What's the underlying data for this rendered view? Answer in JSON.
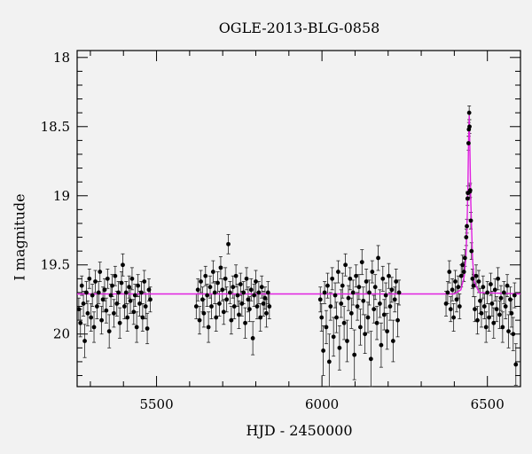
{
  "chart_data": {
    "type": "scatter",
    "title": "OGLE-2013-BLG-0858",
    "xlabel": "HJD - 2450000",
    "ylabel": "I magnitude",
    "xlim": [
      5260,
      6600
    ],
    "ylim": [
      20.38,
      17.95
    ],
    "y_inverted": true,
    "x_ticks": [
      5500,
      6000,
      6500
    ],
    "x_tick_labels": [
      "5500",
      "6000",
      "6500"
    ],
    "y_ticks": [
      18,
      18.5,
      19,
      19.5,
      20
    ],
    "y_tick_labels": [
      "18",
      "18.5",
      "19",
      "19.5",
      "20"
    ],
    "baseline_mag": 19.71,
    "model_color": "#e020e0",
    "point_color": "#000000",
    "grid": false,
    "model_curve": {
      "x": [
        5260,
        6400,
        6420,
        6430,
        6435,
        6438,
        6441,
        6443,
        6445,
        6447,
        6450,
        6455,
        6460,
        6475,
        6600
      ],
      "y": [
        19.71,
        19.71,
        19.68,
        19.58,
        19.45,
        19.25,
        18.95,
        18.62,
        18.42,
        18.65,
        19.05,
        19.45,
        19.62,
        19.7,
        19.71
      ]
    },
    "series": [
      {
        "name": "",
        "points": [
          [
            5265,
            19.82,
            0.08
          ],
          [
            5270,
            19.92,
            0.1
          ],
          [
            5274,
            19.65,
            0.07
          ],
          [
            5279,
            19.78,
            0.09
          ],
          [
            5283,
            20.05,
            0.12
          ],
          [
            5288,
            19.7,
            0.08
          ],
          [
            5292,
            19.85,
            0.09
          ],
          [
            5297,
            19.6,
            0.07
          ],
          [
            5302,
            19.88,
            0.1
          ],
          [
            5306,
            19.72,
            0.08
          ],
          [
            5311,
            19.95,
            0.11
          ],
          [
            5315,
            19.62,
            0.08
          ],
          [
            5320,
            19.8,
            0.09
          ],
          [
            5325,
            19.7,
            0.08
          ],
          [
            5329,
            19.55,
            0.07
          ],
          [
            5334,
            19.9,
            0.1
          ],
          [
            5338,
            19.75,
            0.09
          ],
          [
            5343,
            19.68,
            0.08
          ],
          [
            5348,
            19.83,
            0.09
          ],
          [
            5352,
            19.6,
            0.07
          ],
          [
            5357,
            19.98,
            0.12
          ],
          [
            5362,
            19.72,
            0.08
          ],
          [
            5366,
            19.65,
            0.08
          ],
          [
            5371,
            19.85,
            0.1
          ],
          [
            5375,
            19.58,
            0.07
          ],
          [
            5380,
            19.78,
            0.09
          ],
          [
            5385,
            19.7,
            0.08
          ],
          [
            5389,
            19.92,
            0.11
          ],
          [
            5394,
            19.63,
            0.08
          ],
          [
            5398,
            19.5,
            0.08
          ],
          [
            5403,
            19.8,
            0.09
          ],
          [
            5408,
            19.7,
            0.08
          ],
          [
            5412,
            19.88,
            0.1
          ],
          [
            5417,
            19.66,
            0.08
          ],
          [
            5421,
            19.76,
            0.09
          ],
          [
            5426,
            19.6,
            0.08
          ],
          [
            5431,
            19.84,
            0.09
          ],
          [
            5435,
            19.72,
            0.08
          ],
          [
            5440,
            19.95,
            0.11
          ],
          [
            5444,
            19.65,
            0.08
          ],
          [
            5449,
            19.78,
            0.09
          ],
          [
            5454,
            19.7,
            0.08
          ],
          [
            5458,
            19.88,
            0.1
          ],
          [
            5463,
            19.62,
            0.08
          ],
          [
            5467,
            19.8,
            0.09
          ],
          [
            5472,
            19.96,
            0.11
          ],
          [
            5477,
            19.68,
            0.08
          ],
          [
            5481,
            19.75,
            0.09
          ],
          [
            5620,
            19.8,
            0.09
          ],
          [
            5625,
            19.68,
            0.08
          ],
          [
            5630,
            19.9,
            0.1
          ],
          [
            5634,
            19.62,
            0.08
          ],
          [
            5639,
            19.75,
            0.09
          ],
          [
            5643,
            19.85,
            0.1
          ],
          [
            5648,
            19.58,
            0.07
          ],
          [
            5653,
            19.72,
            0.08
          ],
          [
            5657,
            19.95,
            0.11
          ],
          [
            5662,
            19.66,
            0.08
          ],
          [
            5666,
            19.8,
            0.09
          ],
          [
            5671,
            19.55,
            0.08
          ],
          [
            5676,
            19.7,
            0.08
          ],
          [
            5680,
            19.88,
            0.1
          ],
          [
            5685,
            19.63,
            0.08
          ],
          [
            5690,
            19.78,
            0.09
          ],
          [
            5694,
            19.52,
            0.08
          ],
          [
            5699,
            19.68,
            0.08
          ],
          [
            5703,
            19.84,
            0.09
          ],
          [
            5708,
            19.6,
            0.08
          ],
          [
            5712,
            19.75,
            0.09
          ],
          [
            5717,
            19.35,
            0.07
          ],
          [
            5722,
            19.7,
            0.08
          ],
          [
            5726,
            19.9,
            0.1
          ],
          [
            5731,
            19.66,
            0.08
          ],
          [
            5735,
            19.8,
            0.09
          ],
          [
            5740,
            19.58,
            0.08
          ],
          [
            5745,
            19.72,
            0.08
          ],
          [
            5749,
            19.86,
            0.1
          ],
          [
            5754,
            19.64,
            0.08
          ],
          [
            5758,
            19.78,
            0.09
          ],
          [
            5763,
            19.7,
            0.08
          ],
          [
            5768,
            19.92,
            0.11
          ],
          [
            5772,
            19.6,
            0.08
          ],
          [
            5777,
            19.75,
            0.09
          ],
          [
            5781,
            19.82,
            0.09
          ],
          [
            5786,
            19.68,
            0.08
          ],
          [
            5791,
            20.03,
            0.12
          ],
          [
            5795,
            19.72,
            0.08
          ],
          [
            5800,
            19.62,
            0.08
          ],
          [
            5804,
            19.8,
            0.09
          ],
          [
            5809,
            19.7,
            0.08
          ],
          [
            5814,
            19.88,
            0.1
          ],
          [
            5818,
            19.66,
            0.08
          ],
          [
            5823,
            19.78,
            0.09
          ],
          [
            5828,
            19.74,
            0.08
          ],
          [
            5832,
            19.85,
            0.1
          ],
          [
            5837,
            19.7,
            0.08
          ],
          [
            5841,
            19.8,
            0.09
          ],
          [
            5995,
            19.75,
            0.09
          ],
          [
            5999,
            19.88,
            0.1
          ],
          [
            6004,
            20.12,
            0.18
          ],
          [
            6008,
            19.7,
            0.08
          ],
          [
            6013,
            19.95,
            0.12
          ],
          [
            6017,
            19.65,
            0.09
          ],
          [
            6022,
            20.2,
            0.2
          ],
          [
            6026,
            19.8,
            0.1
          ],
          [
            6031,
            19.6,
            0.08
          ],
          [
            6035,
            20.02,
            0.14
          ],
          [
            6040,
            19.72,
            0.09
          ],
          [
            6044,
            19.88,
            0.11
          ],
          [
            6049,
            19.55,
            0.08
          ],
          [
            6053,
            20.1,
            0.16
          ],
          [
            6058,
            19.78,
            0.1
          ],
          [
            6062,
            19.65,
            0.09
          ],
          [
            6067,
            19.92,
            0.12
          ],
          [
            6071,
            19.5,
            0.08
          ],
          [
            6076,
            20.05,
            0.15
          ],
          [
            6080,
            19.74,
            0.09
          ],
          [
            6085,
            19.6,
            0.08
          ],
          [
            6089,
            19.85,
            0.11
          ],
          [
            6094,
            19.7,
            0.09
          ],
          [
            6098,
            20.15,
            0.18
          ],
          [
            6103,
            19.58,
            0.08
          ],
          [
            6107,
            19.8,
            0.1
          ],
          [
            6112,
            19.66,
            0.09
          ],
          [
            6116,
            19.95,
            0.13
          ],
          [
            6121,
            19.48,
            0.09
          ],
          [
            6125,
            19.76,
            0.1
          ],
          [
            6130,
            20.0,
            0.14
          ],
          [
            6134,
            19.62,
            0.09
          ],
          [
            6139,
            19.88,
            0.11
          ],
          [
            6143,
            19.7,
            0.09
          ],
          [
            6148,
            20.18,
            0.2
          ],
          [
            6152,
            19.55,
            0.08
          ],
          [
            6157,
            19.82,
            0.1
          ],
          [
            6161,
            19.66,
            0.09
          ],
          [
            6166,
            19.92,
            0.12
          ],
          [
            6170,
            19.45,
            0.09
          ],
          [
            6175,
            19.78,
            0.1
          ],
          [
            6179,
            20.08,
            0.16
          ],
          [
            6184,
            19.6,
            0.09
          ],
          [
            6188,
            19.86,
            0.11
          ],
          [
            6193,
            19.72,
            0.09
          ],
          [
            6197,
            19.98,
            0.13
          ],
          [
            6202,
            19.58,
            0.09
          ],
          [
            6206,
            19.8,
            0.1
          ],
          [
            6211,
            19.68,
            0.09
          ],
          [
            6215,
            20.05,
            0.15
          ],
          [
            6220,
            19.75,
            0.09
          ],
          [
            6224,
            19.62,
            0.09
          ],
          [
            6229,
            19.9,
            0.12
          ],
          [
            6233,
            19.7,
            0.09
          ],
          [
            6375,
            19.78,
            0.09
          ],
          [
            6380,
            19.7,
            0.08
          ],
          [
            6385,
            19.55,
            0.08
          ],
          [
            6389,
            19.82,
            0.09
          ],
          [
            6394,
            19.68,
            0.08
          ],
          [
            6398,
            19.88,
            0.1
          ],
          [
            6403,
            19.62,
            0.08
          ],
          [
            6407,
            19.75,
            0.09
          ],
          [
            6412,
            19.66,
            0.08
          ],
          [
            6416,
            19.8,
            0.09
          ],
          [
            6421,
            19.58,
            0.08
          ],
          [
            6425,
            19.5,
            0.07
          ],
          [
            6429,
            19.55,
            0.07
          ],
          [
            6432,
            19.45,
            0.06
          ],
          [
            6436,
            19.3,
            0.06
          ],
          [
            6438,
            19.22,
            0.05
          ],
          [
            6440,
            19.02,
            0.05
          ],
          [
            6441,
            18.98,
            0.05
          ],
          [
            6443,
            18.62,
            0.05
          ],
          [
            6444,
            18.52,
            0.05
          ],
          [
            6445,
            18.4,
            0.05
          ],
          [
            6446,
            18.5,
            0.05
          ],
          [
            6447,
            18.97,
            0.05
          ],
          [
            6448,
            18.96,
            0.05
          ],
          [
            6450,
            19.18,
            0.06
          ],
          [
            6452,
            19.4,
            0.06
          ],
          [
            6455,
            19.6,
            0.07
          ],
          [
            6458,
            19.65,
            0.08
          ],
          [
            6462,
            19.82,
            0.09
          ],
          [
            6466,
            19.58,
            0.08
          ],
          [
            6470,
            19.9,
            0.1
          ],
          [
            6474,
            19.62,
            0.08
          ],
          [
            6478,
            19.76,
            0.09
          ],
          [
            6482,
            19.85,
            0.1
          ],
          [
            6487,
            19.66,
            0.08
          ],
          [
            6491,
            19.8,
            0.09
          ],
          [
            6496,
            19.95,
            0.11
          ],
          [
            6500,
            19.7,
            0.08
          ],
          [
            6505,
            19.88,
            0.1
          ],
          [
            6510,
            19.64,
            0.08
          ],
          [
            6514,
            19.78,
            0.09
          ],
          [
            6519,
            19.92,
            0.11
          ],
          [
            6523,
            19.68,
            0.08
          ],
          [
            6528,
            19.82,
            0.09
          ],
          [
            6532,
            19.6,
            0.08
          ],
          [
            6537,
            19.86,
            0.1
          ],
          [
            6541,
            19.74,
            0.09
          ],
          [
            6546,
            19.95,
            0.11
          ],
          [
            6550,
            19.7,
            0.08
          ],
          [
            6555,
            19.8,
            0.09
          ],
          [
            6560,
            19.65,
            0.08
          ],
          [
            6564,
            19.98,
            0.12
          ],
          [
            6569,
            19.75,
            0.09
          ],
          [
            6573,
            19.85,
            0.1
          ],
          [
            6578,
            20.0,
            0.12
          ],
          [
            6582,
            19.72,
            0.09
          ],
          [
            6586,
            20.22,
            0.15
          ]
        ]
      }
    ]
  }
}
